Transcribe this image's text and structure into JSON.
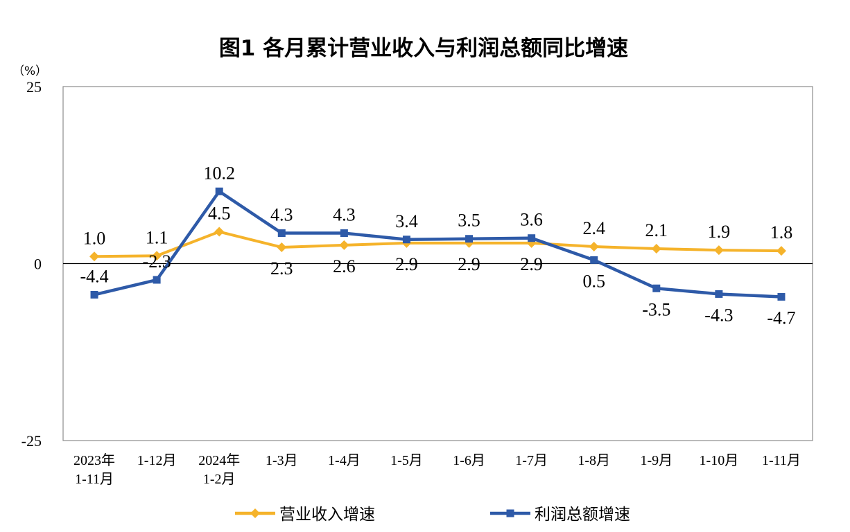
{
  "chart_data": {
    "type": "line",
    "title": "图1  各月累计营业收入与利润总额同比增速",
    "ylabel": "（%）",
    "xlabel": "",
    "ylim": [
      -25,
      25
    ],
    "yticks": [
      "25",
      "0",
      "-25"
    ],
    "grid": false,
    "legend_position": "bottom",
    "categories": [
      [
        "2023年",
        "1-11月"
      ],
      [
        "1-12月"
      ],
      [
        "2024年",
        "1-2月"
      ],
      [
        "1-3月"
      ],
      [
        "1-4月"
      ],
      [
        "1-5月"
      ],
      [
        "1-6月"
      ],
      [
        "1-7月"
      ],
      [
        "1-8月"
      ],
      [
        "1-9月"
      ],
      [
        "1-10月"
      ],
      [
        "1-11月"
      ]
    ],
    "series": [
      {
        "name": "营业收入增速",
        "color": "#F5B32B",
        "marker": "diamond",
        "values": [
          1.0,
          1.1,
          4.5,
          2.3,
          2.6,
          2.9,
          2.9,
          2.9,
          2.4,
          2.1,
          1.9,
          1.8
        ],
        "labels": [
          "1.0",
          "1.1",
          "4.5",
          "2.3",
          "2.6",
          "2.9",
          "2.9",
          "2.9",
          "2.4",
          "2.1",
          "1.9",
          "1.8"
        ],
        "label_pos": [
          "above",
          "above",
          "above",
          "below",
          "below",
          "below",
          "below",
          "below",
          "above",
          "above",
          "above",
          "above"
        ]
      },
      {
        "name": "利润总额增速",
        "color": "#2E5AA8",
        "marker": "square",
        "values": [
          -4.4,
          -2.3,
          10.2,
          4.3,
          4.3,
          3.4,
          3.5,
          3.6,
          0.5,
          -3.5,
          -4.3,
          -4.7
        ],
        "labels": [
          "-4.4",
          "-2.3",
          "10.2",
          "4.3",
          "4.3",
          "3.4",
          "3.5",
          "3.6",
          "0.5",
          "-3.5",
          "-4.3",
          "-4.7"
        ],
        "label_pos": [
          "above",
          "above",
          "above",
          "above",
          "above",
          "above",
          "above",
          "above",
          "below",
          "below",
          "below",
          "below"
        ]
      }
    ]
  }
}
